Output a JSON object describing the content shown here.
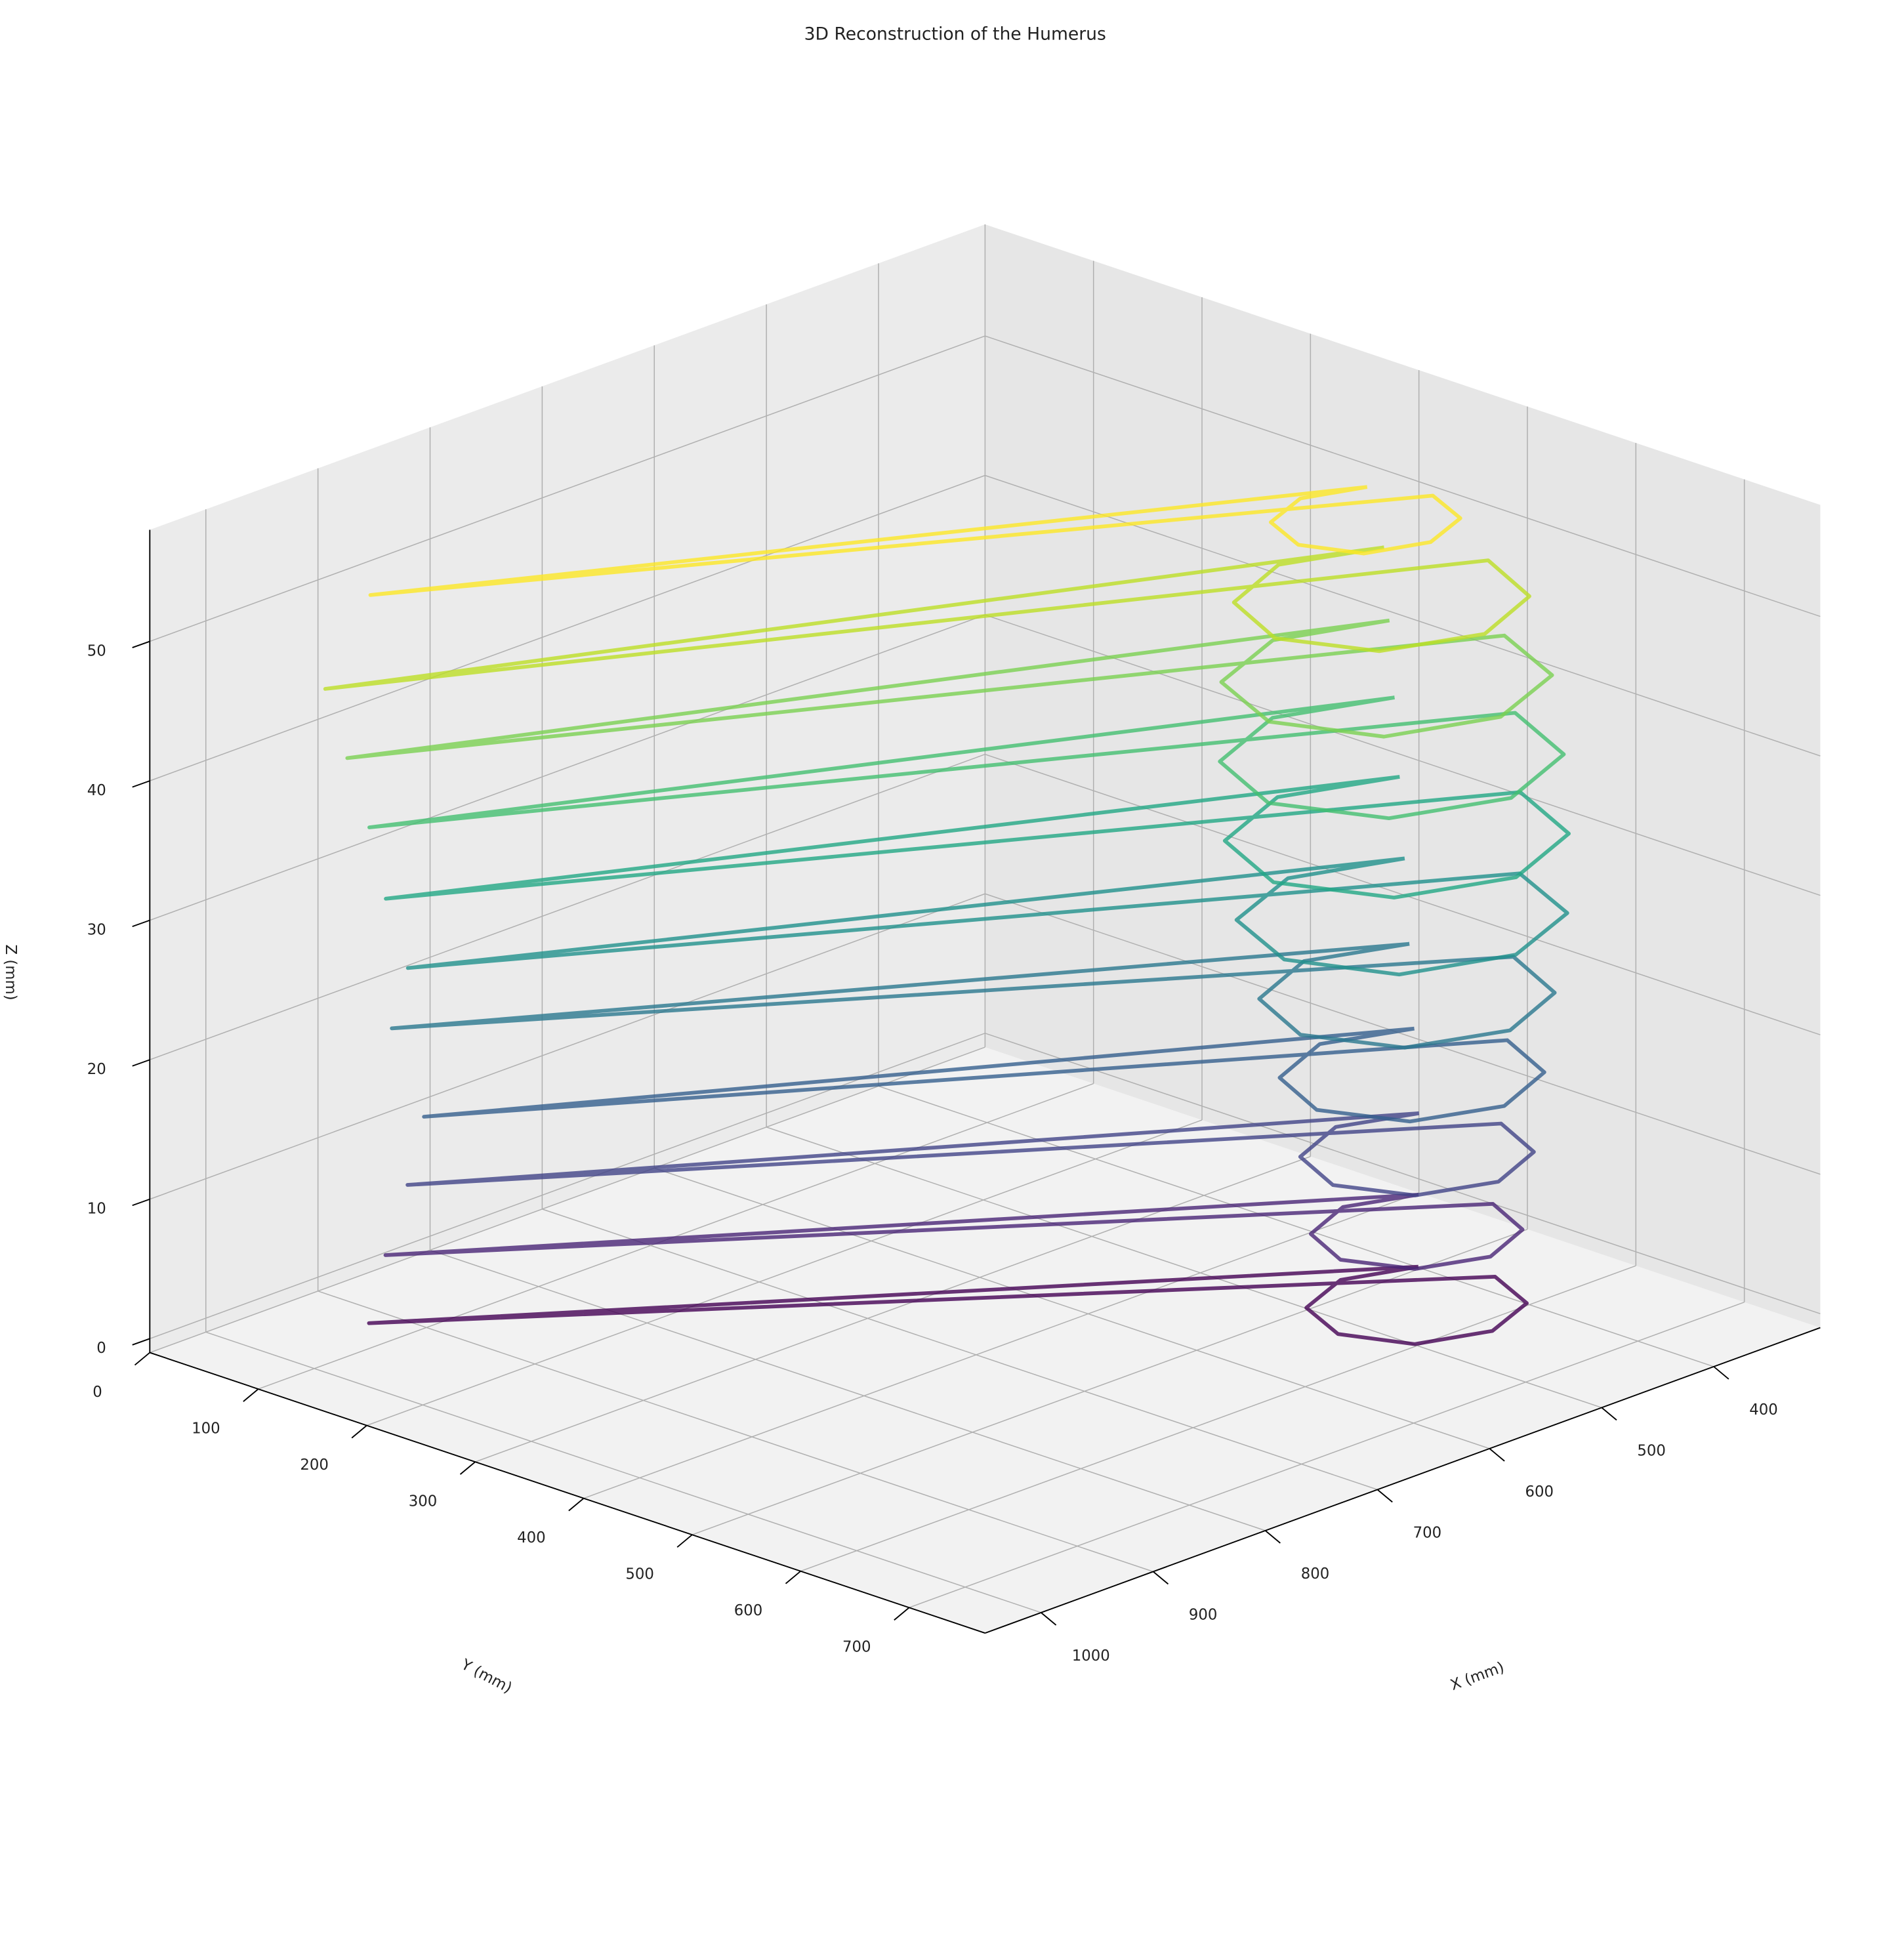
{
  "chart_data": {
    "type": "line3d",
    "title": "3D Reconstruction of the Humerus",
    "xlabel": "X (mm)",
    "ylabel": "Y (mm)",
    "zlabel": "Z (mm)",
    "xlim": [
      305,
      1050
    ],
    "ylim": [
      0,
      770
    ],
    "zlim": [
      -1,
      58
    ],
    "xticks": [
      400,
      500,
      600,
      700,
      800,
      900,
      1000
    ],
    "yticks": [
      0,
      100,
      200,
      300,
      400,
      500,
      600,
      700
    ],
    "zticks": [
      0,
      10,
      20,
      30,
      40,
      50
    ],
    "grid": true,
    "series": [
      {
        "color": "#440154",
        "x": [
          470,
          520,
          570,
          590,
          570,
          520,
          470,
          450,
          990,
          470
        ],
        "y": [
          570,
          550,
          570,
          620,
          670,
          690,
          670,
          620,
          140,
          570
        ],
        "z": [
          3,
          3,
          3,
          3,
          3,
          3,
          3,
          3,
          3,
          3
        ]
      },
      {
        "color": "#482475",
        "x": [
          467,
          515,
          563,
          583,
          563,
          515,
          467,
          447,
          985,
          467
        ],
        "y": [
          567,
          547,
          567,
          615,
          663,
          683,
          663,
          615,
          150,
          567
        ],
        "z": [
          8,
          8,
          8,
          8,
          8,
          8,
          8,
          8,
          8,
          8
        ]
      },
      {
        "color": "#414487",
        "x": [
          452,
          505,
          558,
          580,
          558,
          505,
          452,
          430,
          975,
          452
        ],
        "y": [
          552,
          530,
          552,
          605,
          658,
          680,
          658,
          605,
          160,
          552
        ],
        "z": [
          13,
          13,
          13,
          13,
          13,
          13,
          13,
          13,
          13,
          13
        ]
      },
      {
        "color": "#355f8d",
        "x": [
          435,
          495,
          555,
          580,
          555,
          495,
          435,
          410,
          970,
          435
        ],
        "y": [
          530,
          505,
          530,
          590,
          650,
          675,
          650,
          590,
          170,
          530
        ],
        "z": [
          18,
          18,
          18,
          18,
          18,
          18,
          18,
          18,
          18,
          18
        ]
      },
      {
        "color": "#2a788e",
        "x": [
          418,
          485,
          552,
          580,
          552,
          485,
          418,
          390,
          960,
          418
        ],
        "y": [
          508,
          480,
          508,
          575,
          642,
          670,
          642,
          575,
          130,
          508
        ],
        "z": [
          23,
          23,
          23,
          23,
          23,
          23,
          23,
          23,
          23,
          23
        ]
      },
      {
        "color": "#21918c",
        "x": [
          400,
          475,
          550,
          580,
          550,
          475,
          400,
          370,
          965,
          400
        ],
        "y": [
          485,
          455,
          485,
          560,
          635,
          665,
          635,
          560,
          150,
          485
        ],
        "z": [
          28,
          28,
          28,
          28,
          28,
          28,
          28,
          28,
          28,
          28
        ]
      },
      {
        "color": "#22a884",
        "x": [
          387,
          465,
          543,
          575,
          543,
          465,
          387,
          355,
          975,
          387
        ],
        "y": [
          467,
          435,
          467,
          545,
          623,
          655,
          623,
          545,
          140,
          467
        ],
        "z": [
          33,
          33,
          33,
          33,
          33,
          33,
          33,
          33,
          33,
          33
        ]
      },
      {
        "color": "#44bf70",
        "x": [
          377,
          455,
          533,
          565,
          533,
          455,
          377,
          345,
          980,
          377
        ],
        "y": [
          452,
          420,
          452,
          530,
          608,
          640,
          608,
          530,
          130,
          452
        ],
        "z": [
          38,
          38,
          38,
          38,
          38,
          38,
          38,
          38,
          38,
          38
        ]
      },
      {
        "color": "#7ad151",
        "x": [
          370,
          445,
          520,
          550,
          520,
          445,
          370,
          340,
          990,
          370
        ],
        "y": [
          440,
          410,
          440,
          515,
          590,
          620,
          590,
          515,
          120,
          440
        ],
        "z": [
          43,
          43,
          43,
          43,
          43,
          43,
          43,
          43,
          43,
          43
        ]
      },
      {
        "color": "#bddf26",
        "x": [
          368,
          435,
          502,
          530,
          502,
          435,
          368,
          340,
          1000,
          368
        ],
        "y": [
          433,
          405,
          433,
          500,
          567,
          595,
          567,
          500,
          110,
          433
        ],
        "z": [
          48,
          48,
          48,
          48,
          48,
          48,
          48,
          48,
          48,
          48
        ]
      },
      {
        "color": "#fde725",
        "x": [
          387,
          430,
          473,
          490,
          473,
          430,
          387,
          370,
          950,
          387
        ],
        "y": [
          437,
          420,
          437,
          480,
          523,
          540,
          523,
          480,
          100,
          437
        ],
        "z": [
          53,
          53,
          53,
          53,
          53,
          53,
          53,
          53,
          53,
          53
        ]
      }
    ]
  }
}
